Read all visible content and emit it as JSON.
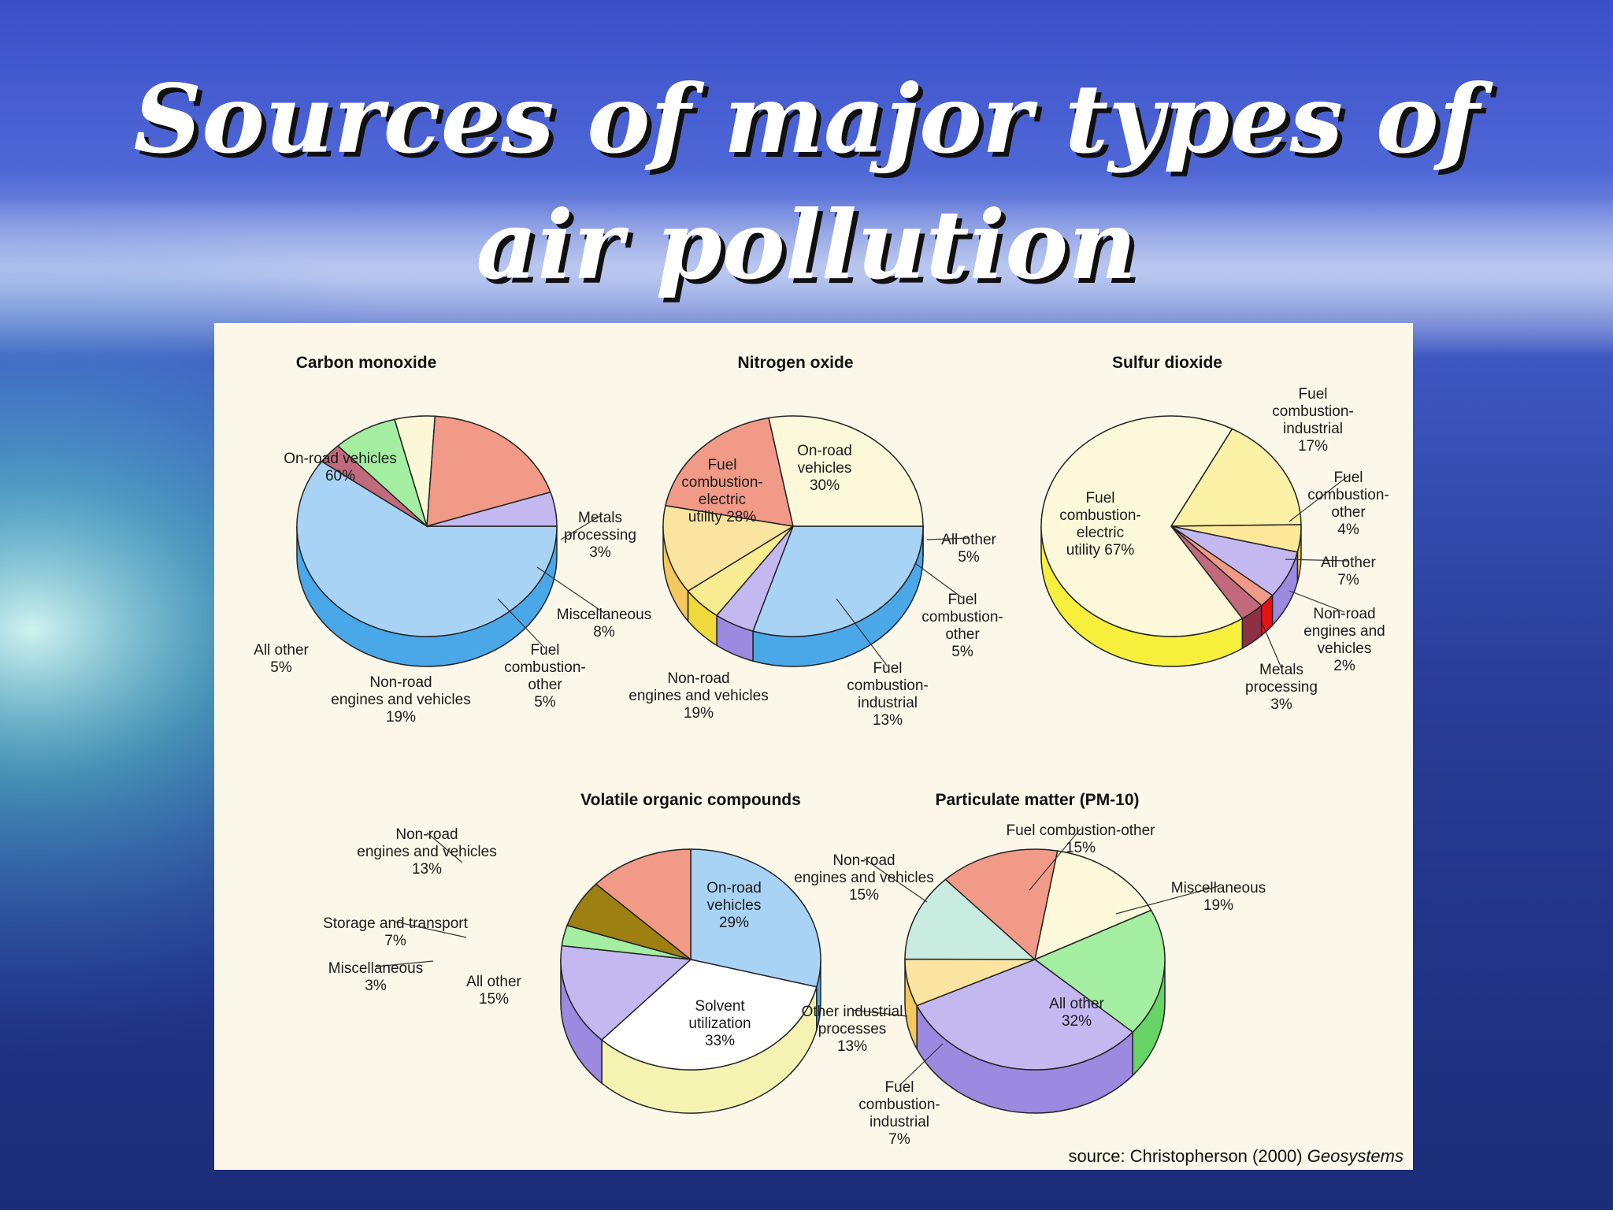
{
  "slide": {
    "title_line1": "Sources of major types of",
    "title_line2": "air pollution"
  },
  "source_note": {
    "prefix": "source: Christopherson (2000) ",
    "book": "Geosystems"
  },
  "chart_data": [
    {
      "type": "pie",
      "title": "Carbon monoxide",
      "slices": [
        {
          "label": [
            "On-road vehicles",
            "60%"
          ],
          "value": 60,
          "color": "#a9d3f5",
          "side": "#4aa8e8"
        },
        {
          "label": [
            "Metals",
            "processing",
            "3%"
          ],
          "value": 3,
          "color": "#c16a7e",
          "side": "#8e2f46"
        },
        {
          "label": [
            "Miscellaneous",
            "8%"
          ],
          "value": 8,
          "color": "#a3eea0",
          "side": "#1fc21f"
        },
        {
          "label": [
            "Fuel",
            "combustion-",
            "other",
            "5%"
          ],
          "value": 5,
          "color": "#fbf7d7",
          "side": "#f3ef55"
        },
        {
          "label": [
            "Non-road",
            "engines and vehicles",
            "19%"
          ],
          "value": 19,
          "color": "#f19a88",
          "side": "#ec1111"
        },
        {
          "label": [
            "All other",
            "5%"
          ],
          "value": 5,
          "color": "#c4b8f1",
          "side": "#9b8ae0"
        }
      ]
    },
    {
      "type": "pie",
      "title": "Nitrogen oxide",
      "slices": [
        {
          "label": [
            "On-road",
            "vehicles",
            "30%"
          ],
          "value": 30,
          "color": "#a9d3f5",
          "side": "#4aa8e8"
        },
        {
          "label": [
            "All other",
            "5%"
          ],
          "value": 5,
          "color": "#c4b8f1",
          "side": "#9b8ae0"
        },
        {
          "label": [
            "Fuel",
            "combustion-",
            "other",
            "5%"
          ],
          "value": 5,
          "color": "#f8ec92",
          "side": "#f0d93a"
        },
        {
          "label": [
            "Fuel",
            "combustion-",
            "industrial",
            "13%"
          ],
          "value": 13,
          "color": "#fae4a0",
          "side": "#f4c85e"
        },
        {
          "label": [
            "Non-road",
            "engines and vehicles",
            "19%"
          ],
          "value": 19,
          "color": "#f19a88",
          "side": "#ec1111"
        },
        {
          "label": [
            "Fuel",
            "combustion-",
            "electric",
            "utility 28%"
          ],
          "value": 28,
          "color": "#fcf9da",
          "side": "#f6f03c"
        }
      ]
    },
    {
      "type": "pie",
      "title": "Sulfur dioxide",
      "slices": [
        {
          "label": [
            "Fuel",
            "combustion-",
            "industrial",
            "17%"
          ],
          "value": 17,
          "color": "#fbf1a6",
          "side": "#f1e070"
        },
        {
          "label": [
            "Fuel",
            "combustion-",
            "other",
            "4%"
          ],
          "value": 4,
          "color": "#fde89a",
          "side": "#f3cf4e"
        },
        {
          "label": [
            "All other",
            "7%"
          ],
          "value": 7,
          "color": "#c4b8f1",
          "side": "#9b8ae0"
        },
        {
          "label": [
            "Non-road",
            "engines and",
            "vehicles",
            "2%"
          ],
          "value": 2,
          "color": "#f19a88",
          "side": "#ec1111"
        },
        {
          "label": [
            "Metals",
            "processing",
            "3%"
          ],
          "value": 3,
          "color": "#c16a7e",
          "side": "#8e2f46"
        },
        {
          "label": [
            "Fuel",
            "combustion-",
            "electric",
            "utility 67%"
          ],
          "value": 67,
          "color": "#fcf9da",
          "side": "#f6f03c"
        }
      ]
    },
    {
      "type": "pie",
      "title": "Volatile organic compounds",
      "slices": [
        {
          "label": [
            "On-road",
            "vehicles",
            "29%"
          ],
          "value": 29,
          "color": "#a9d3f5",
          "side": "#4aa8e8"
        },
        {
          "label": [
            "Solvent",
            "utilization",
            "33%"
          ],
          "value": 33,
          "color": "#ffffff",
          "side": "#f4f3b2"
        },
        {
          "label": [
            "All other",
            "15%"
          ],
          "value": 15,
          "color": "#c4b8f1",
          "side": "#9b8ae0"
        },
        {
          "label": [
            "Miscellaneous",
            "3%"
          ],
          "value": 3,
          "color": "#a3eea0",
          "side": "#5bd85b"
        },
        {
          "label": [
            "Storage and transport",
            "7%"
          ],
          "value": 7,
          "color": "#9e7f12",
          "side": "#7a6008"
        },
        {
          "label": [
            "Non-road",
            "engines and vehicles",
            "13%"
          ],
          "value": 13,
          "color": "#f19a88",
          "side": "#d9705e"
        }
      ]
    },
    {
      "type": "pie",
      "title": "Particulate matter (PM-10)",
      "slices": [
        {
          "label": [
            "Fuel combustion-other",
            "15%"
          ],
          "value": 15,
          "color": "#fcf9da",
          "side": "#eeeaa8"
        },
        {
          "label": [
            "Miscellaneous",
            "19%"
          ],
          "value": 19,
          "color": "#a3eea0",
          "side": "#66d466"
        },
        {
          "label": [
            "All other",
            "32%"
          ],
          "value": 32,
          "color": "#c4b8f1",
          "side": "#9b8ae0"
        },
        {
          "label": [
            "Fuel",
            "combustion-",
            "industrial",
            "7%"
          ],
          "value": 7,
          "color": "#fae4a0",
          "side": "#f4c85e"
        },
        {
          "label": [
            "Other industrial",
            "processes",
            "13%"
          ],
          "value": 13,
          "color": "#c8ece0",
          "side": "#8fd2bd"
        },
        {
          "label": [
            "Non-road",
            "engines and vehicles",
            "15%"
          ],
          "value": 15,
          "color": "#f19a88",
          "side": "#d9705e"
        }
      ]
    }
  ]
}
